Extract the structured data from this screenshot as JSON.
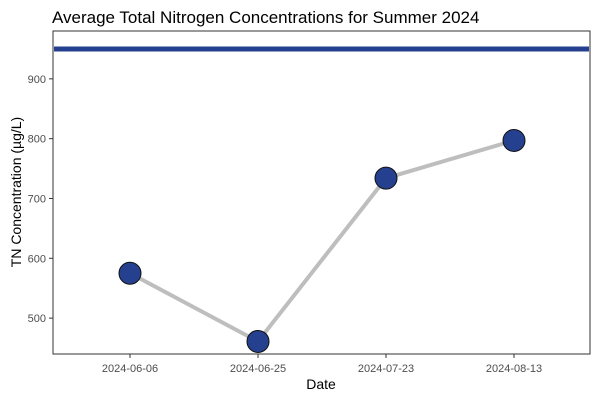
{
  "chart_data": {
    "type": "line",
    "title": "Average Total Nitrogen Concentrations for Summer 2024",
    "xlabel": "Date",
    "ylabel": "TN Concentration (µg/L)",
    "categories": [
      "2024-06-06",
      "2024-06-25",
      "2024-07-23",
      "2024-08-13"
    ],
    "series": [
      {
        "values": [
          575,
          461,
          734,
          797
        ]
      }
    ],
    "ylim": [
      440,
      980
    ],
    "yticks": [
      500,
      600,
      700,
      800,
      900
    ],
    "reference_line": {
      "value": 950
    },
    "grid": false,
    "legend": "none",
    "colors": {
      "line": "#bebebe",
      "point_fill": "#24408e",
      "point_stroke": "#111111",
      "reference_line": "#24408e",
      "panel_border": "#333333"
    }
  }
}
